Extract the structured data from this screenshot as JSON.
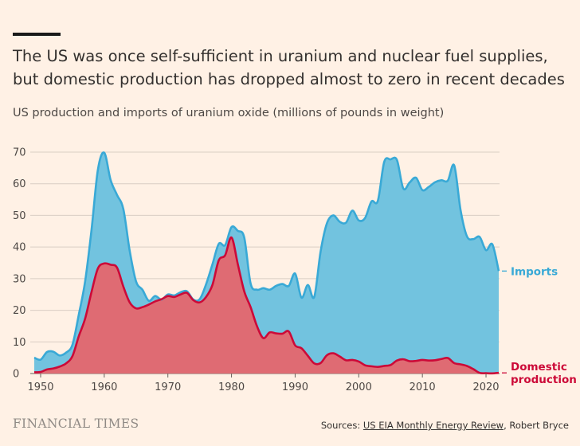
{
  "header": {
    "title": "The US was once self-sufficient in uranium and nuclear fuel supplies, but domestic production has dropped almost to zero in recent decades",
    "subtitle": "US production and imports of uranium oxide (millions of pounds in weight)"
  },
  "footer": {
    "brand": "FINANCIAL TIMES",
    "sources_prefix": "Sources:",
    "sources_link": "US EIA Monthly Energy Review",
    "sources_rest": ", Robert Bryce"
  },
  "colors": {
    "imports_fill": "#72c3df",
    "imports_line": "#39a9d6",
    "production_fill": "#df6b73",
    "production_line": "#cc0a38",
    "grid": "#d9cec4",
    "background": "#fff1e5"
  },
  "chart_data": {
    "type": "area",
    "title": "US production and imports of uranium oxide (millions of pounds in weight)",
    "xlabel": "",
    "ylabel": "",
    "xlim": [
      1949,
      2022
    ],
    "ylim": [
      0,
      70
    ],
    "xticks": [
      1950,
      1960,
      1970,
      1980,
      1990,
      2000,
      2010,
      2020
    ],
    "yticks": [
      0,
      10,
      20,
      30,
      40,
      50,
      60,
      70
    ],
    "grid": true,
    "stacked": true,
    "x": [
      1949,
      1950,
      1951,
      1952,
      1953,
      1954,
      1955,
      1956,
      1957,
      1958,
      1959,
      1960,
      1961,
      1962,
      1963,
      1964,
      1965,
      1966,
      1967,
      1968,
      1969,
      1970,
      1971,
      1972,
      1973,
      1974,
      1975,
      1976,
      1977,
      1978,
      1979,
      1980,
      1981,
      1982,
      1983,
      1984,
      1985,
      1986,
      1987,
      1988,
      1989,
      1990,
      1991,
      1992,
      1993,
      1994,
      1995,
      1996,
      1997,
      1998,
      1999,
      2000,
      2001,
      2002,
      2003,
      2004,
      2005,
      2006,
      2007,
      2008,
      2009,
      2010,
      2011,
      2012,
      2013,
      2014,
      2015,
      2016,
      2017,
      2018,
      2019,
      2020,
      2021,
      2022
    ],
    "series": [
      {
        "name": "Domestic production",
        "label": "Domestic production",
        "values": [
          0.4,
          0.5,
          1.3,
          1.6,
          2.2,
          3.2,
          5.5,
          11.8,
          17.4,
          25.8,
          33.2,
          34.8,
          34.4,
          33.5,
          27.5,
          22.5,
          20.6,
          21,
          21.8,
          22.8,
          23.5,
          24.5,
          24.2,
          25,
          25.5,
          23.2,
          22.5,
          24.2,
          28,
          35.8,
          37.4,
          43,
          34.5,
          26,
          21,
          15,
          11.2,
          13,
          12.7,
          12.6,
          13.3,
          8.9,
          8,
          5.6,
          3.2,
          3.3,
          5.8,
          6.4,
          5.4,
          4.2,
          4.3,
          3.8,
          2.6,
          2.3,
          2.1,
          2.4,
          2.7,
          4.1,
          4.5,
          3.9,
          4,
          4.3,
          4.1,
          4.2,
          4.6,
          4.9,
          3.3,
          2.9,
          2.4,
          1.4,
          0.2,
          0.1,
          0.05,
          0.2
        ]
      },
      {
        "name": "Imports",
        "label": "Imports",
        "values": [
          4.6,
          3.9,
          5.5,
          5.3,
          3.5,
          3.4,
          3.6,
          6.8,
          11.8,
          19.6,
          31.2,
          35,
          26.8,
          23,
          24.5,
          16.3,
          8.5,
          5.5,
          1.2,
          1.7,
          -0.1,
          0.5,
          0.5,
          0.7,
          0.5,
          0.2,
          1,
          4,
          6.5,
          5.2,
          3.2,
          3.3,
          10.6,
          17,
          7.5,
          11.5,
          15.8,
          13.5,
          15,
          15.7,
          14.4,
          22.7,
          16,
          22.4,
          21,
          35.2,
          41.7,
          43.6,
          42.6,
          43.5,
          47.2,
          44.6,
          46.6,
          52.1,
          52.5,
          64.5,
          65,
          63.4,
          54,
          56.5,
          57.9,
          53.7,
          54.9,
          56.3,
          56.5,
          56.1,
          62.5,
          48.8,
          41,
          41.1,
          43,
          38.9,
          40.8,
          32.2
        ]
      }
    ],
    "legend_placement": "right, at end of each series"
  }
}
